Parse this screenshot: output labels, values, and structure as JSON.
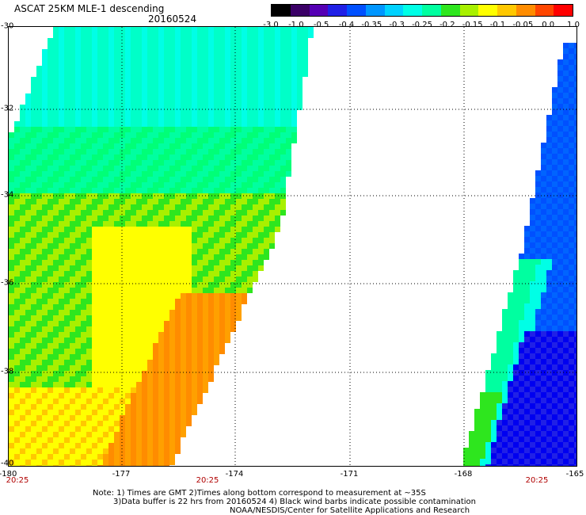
{
  "header": {
    "title": "ASCAT 25KM MLE-1 descending",
    "date": "20160524"
  },
  "colorbar": {
    "labels": [
      "-3.0",
      "-1.0",
      "-0.5",
      "-0.4",
      "-0.35",
      "-0.3",
      "-0.25",
      "-0.2",
      "-0.15",
      "-0.1",
      "-0.05",
      "0.0",
      "1.0"
    ],
    "colors": [
      "#000000",
      "#3a0066",
      "#5500b4",
      "#2020e6",
      "#0050ff",
      "#0096ff",
      "#00d2ff",
      "#00ffe6",
      "#00ffa0",
      "#2ee61e",
      "#a8f000",
      "#ffff00",
      "#ffc800",
      "#ff8c00",
      "#ff4600",
      "#ff0000"
    ]
  },
  "map": {
    "lat_labels": [
      "-30",
      "-32",
      "-34",
      "-36",
      "-38",
      "-40"
    ],
    "lon_labels": [
      "-180",
      "-177",
      "-174",
      "-171",
      "-168",
      "-165"
    ],
    "time_labels": [
      "20:25",
      "20:25",
      "20:25"
    ],
    "lat_range": [
      -40,
      -30
    ],
    "lon_range": [
      -180,
      -165
    ],
    "grid": true
  },
  "notes": {
    "line1": "Note: 1) Times are GMT 2)Times along bottom correspond to measurement at ~35S",
    "line2": "3)Data buffer is 22 hrs from 20160524 4) Black wind barbs indicate possible contamination",
    "line3": "NOAA/NESDIS/Center for Satellite Applications and Research"
  }
}
